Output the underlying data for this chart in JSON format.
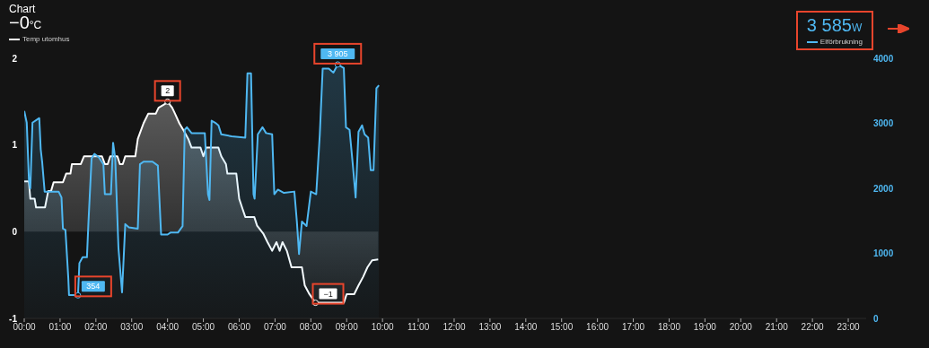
{
  "chart_data": {
    "type": "area",
    "title": "Chart",
    "annotations": [
      "−0°C",
      "3 585W"
    ],
    "legend": "top",
    "xlim": [
      0,
      23.5
    ],
    "xticks": [
      {
        "value": 0,
        "label": "00:00"
      },
      {
        "value": 1,
        "label": "01:00"
      },
      {
        "value": 2,
        "label": "02:00"
      },
      {
        "value": 3,
        "label": "03:00"
      },
      {
        "value": 4,
        "label": "04:00"
      },
      {
        "value": 5,
        "label": "05:00"
      },
      {
        "value": 6,
        "label": "06:00"
      },
      {
        "value": 7,
        "label": "07:00"
      },
      {
        "value": 8,
        "label": "08:00"
      },
      {
        "value": 9,
        "label": "09:00"
      },
      {
        "value": 10,
        "label": "10:00"
      },
      {
        "value": 11,
        "label": "11:00"
      },
      {
        "value": 12,
        "label": "12:00"
      },
      {
        "value": 13,
        "label": "13:00"
      },
      {
        "value": 14,
        "label": "14:00"
      },
      {
        "value": 15,
        "label": "15:00"
      },
      {
        "value": 16,
        "label": "16:00"
      },
      {
        "value": 17,
        "label": "17:00"
      },
      {
        "value": 18,
        "label": "18:00"
      },
      {
        "value": 19,
        "label": "19:00"
      },
      {
        "value": 20,
        "label": "20:00"
      },
      {
        "value": 21,
        "label": "21:00"
      },
      {
        "value": 22,
        "label": "22:00"
      },
      {
        "value": 23,
        "label": "23:00"
      }
    ],
    "ylim": [
      -1,
      2
    ],
    "yticks": [
      -1,
      0,
      1,
      2
    ],
    "y2lim": [
      0,
      4000
    ],
    "y2ticks": [
      0,
      1000,
      2000,
      3000,
      4000
    ],
    "series": [
      {
        "name": "Temp utomhus",
        "color": "#ffffff",
        "x": [
          0,
          0.13,
          0.17,
          0.29,
          0.33,
          0.58,
          0.67,
          0.75,
          0.82,
          1.08,
          1.17,
          1.29,
          1.33,
          1.58,
          1.67,
          2.17,
          2.25,
          2.33,
          2.4,
          2.6,
          2.67,
          2.75,
          2.82,
          3.1,
          3.17,
          3.25,
          3.33,
          3.46,
          3.67,
          3.75,
          3.92,
          4.0,
          4.13,
          4.21,
          4.33,
          4.46,
          4.58,
          4.67,
          4.92,
          5.0,
          5.08,
          5.42,
          5.5,
          5.63,
          5.67,
          5.92,
          6.0,
          6.08,
          6.17,
          6.42,
          6.5,
          6.67,
          6.79,
          6.92,
          7.04,
          7.13,
          7.21,
          7.33,
          7.46,
          7.75,
          7.83,
          7.96,
          8.13,
          8.92,
          9.0,
          9.21,
          9.33,
          9.46,
          9.58,
          9.71,
          9.88
        ],
        "values": [
          0.58,
          0.58,
          0.38,
          0.38,
          0.28,
          0.28,
          0.47,
          0.47,
          0.57,
          0.57,
          0.67,
          0.67,
          0.78,
          0.78,
          0.87,
          0.87,
          0.78,
          0.78,
          0.87,
          0.87,
          0.78,
          0.78,
          0.87,
          0.87,
          1.07,
          1.16,
          1.25,
          1.36,
          1.36,
          1.43,
          1.47,
          1.5,
          1.43,
          1.36,
          1.25,
          1.16,
          1.07,
          0.97,
          0.97,
          0.87,
          0.97,
          0.97,
          0.87,
          0.78,
          0.67,
          0.67,
          0.38,
          0.28,
          0.17,
          0.17,
          0.07,
          -0.02,
          -0.12,
          -0.22,
          -0.12,
          -0.22,
          -0.12,
          -0.22,
          -0.41,
          -0.41,
          -0.62,
          -0.72,
          -0.82,
          -0.82,
          -0.72,
          -0.72,
          -0.62,
          -0.52,
          -0.41,
          -0.33,
          -0.32
        ],
        "value_labels": [
          null,
          null,
          null,
          null,
          null,
          null,
          null,
          null,
          null,
          null,
          null,
          null,
          null,
          null,
          null,
          null,
          null,
          null,
          null,
          null,
          null,
          null,
          null,
          null,
          null,
          null,
          null,
          null,
          null,
          null,
          null,
          "2",
          null,
          null,
          null,
          null,
          null,
          null,
          null,
          null,
          null,
          null,
          null,
          null,
          null,
          null,
          null,
          null,
          null,
          null,
          null,
          null,
          null,
          null,
          null,
          null,
          null,
          null,
          null,
          null,
          null,
          null,
          "−1",
          null,
          null,
          null,
          null,
          null,
          null,
          null,
          null
        ]
      },
      {
        "name": "Elförbrukning",
        "color": "#4fb8f2",
        "axis": "y2",
        "x": [
          0,
          0.07,
          0.13,
          0.17,
          0.23,
          0.42,
          0.46,
          0.5,
          0.57,
          0.96,
          1.04,
          1.08,
          1.15,
          1.23,
          1.25,
          1.42,
          1.5,
          1.54,
          1.63,
          1.75,
          1.79,
          1.88,
          1.96,
          2.08,
          2.21,
          2.25,
          2.42,
          2.48,
          2.54,
          2.63,
          2.73,
          2.82,
          2.92,
          3.17,
          3.23,
          3.33,
          3.58,
          3.73,
          3.82,
          4.0,
          4.08,
          4.29,
          4.42,
          4.48,
          4.54,
          4.67,
          5.04,
          5.13,
          5.17,
          5.23,
          5.33,
          5.42,
          5.5,
          5.79,
          6.17,
          6.23,
          6.33,
          6.4,
          6.43,
          6.52,
          6.65,
          6.75,
          6.92,
          6.98,
          7.08,
          7.25,
          7.54,
          7.61,
          7.67,
          7.75,
          7.88,
          8.0,
          8.15,
          8.25,
          8.33,
          8.5,
          8.63,
          8.75,
          8.92,
          8.98,
          9.08,
          9.17,
          9.25,
          9.33,
          9.43,
          9.5,
          9.6,
          9.67,
          9.75,
          9.83,
          9.9
        ],
        "values": [
          3190,
          3010,
          2140,
          2000,
          3010,
          3080,
          2600,
          2410,
          1950,
          1950,
          1860,
          1380,
          1360,
          620,
          360,
          360,
          354,
          850,
          940,
          940,
          1450,
          2460,
          2530,
          2480,
          2370,
          1910,
          1910,
          2700,
          2460,
          1080,
          400,
          1450,
          1400,
          1380,
          2370,
          2410,
          2410,
          2350,
          1290,
          1290,
          1320,
          1320,
          1420,
          2900,
          2940,
          2850,
          2850,
          1910,
          1820,
          3040,
          3010,
          2970,
          2830,
          2800,
          2780,
          3770,
          3770,
          1910,
          1840,
          2830,
          2940,
          2850,
          2830,
          1910,
          1980,
          1930,
          1950,
          1490,
          990,
          1490,
          1420,
          1950,
          1910,
          2830,
          3840,
          3840,
          3780,
          3905,
          3850,
          2940,
          2900,
          2370,
          1860,
          2870,
          2970,
          2830,
          2780,
          2280,
          2280,
          3540,
          3585
        ],
        "value_labels": [
          null,
          null,
          null,
          null,
          null,
          null,
          null,
          null,
          null,
          null,
          null,
          null,
          null,
          null,
          null,
          null,
          "354",
          null,
          null,
          null,
          null,
          null,
          null,
          null,
          null,
          null,
          null,
          null,
          null,
          null,
          null,
          null,
          null,
          null,
          null,
          null,
          null,
          null,
          null,
          null,
          null,
          null,
          null,
          null,
          null,
          null,
          null,
          null,
          null,
          null,
          null,
          null,
          null,
          null,
          null,
          null,
          null,
          null,
          null,
          null,
          null,
          null,
          null,
          null,
          null,
          null,
          null,
          null,
          null,
          null,
          null,
          null,
          null,
          null,
          null,
          null,
          null,
          "3 905",
          null,
          null,
          null,
          null,
          null,
          null,
          null,
          null,
          null,
          null,
          null,
          null,
          null
        ]
      }
    ]
  }
}
